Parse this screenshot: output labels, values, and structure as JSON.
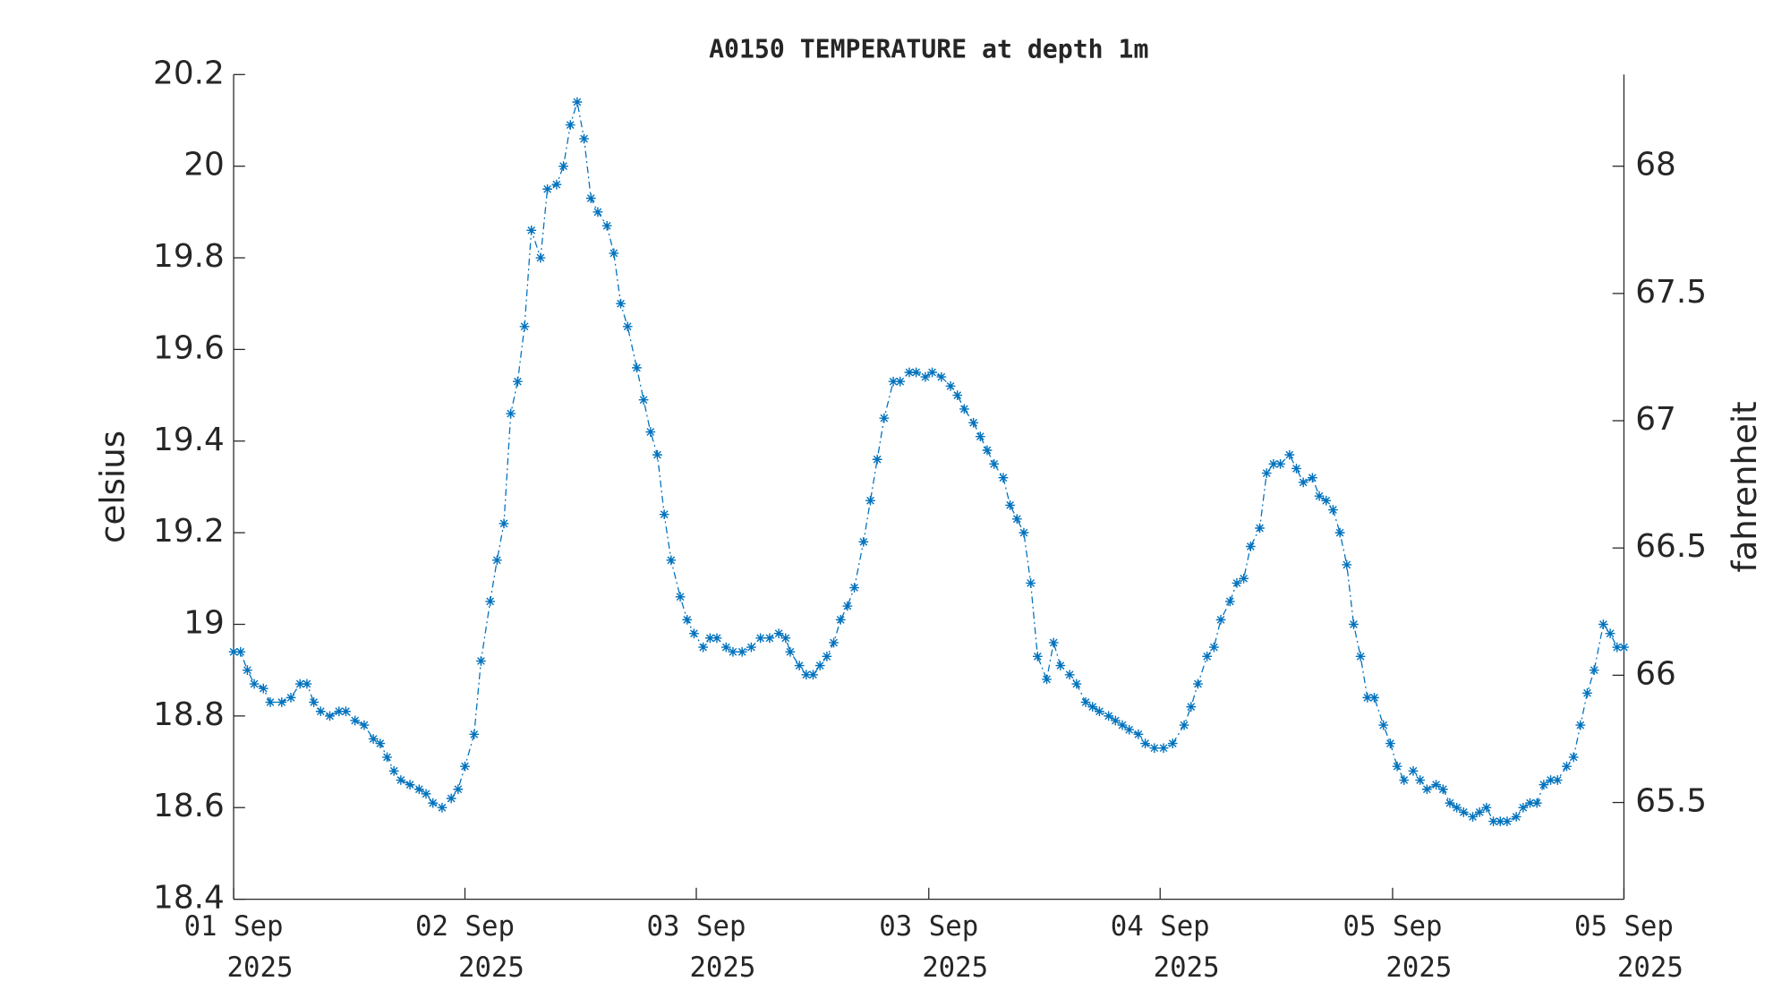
{
  "chart_data": {
    "type": "line",
    "title": "A0150 TEMPERATURE at depth 1m",
    "ylabel": "celsius",
    "y2label": "fahrenheit",
    "xlim": [
      0,
      1214
    ],
    "xticks": [
      {
        "value": 0,
        "label": [
          "01 Sep",
          "2025"
        ]
      },
      {
        "value": 202,
        "label": [
          "02 Sep",
          "2025"
        ]
      },
      {
        "value": 404,
        "label": [
          "03 Sep",
          "2025"
        ]
      },
      {
        "value": 607,
        "label": [
          "03 Sep",
          "2025"
        ]
      },
      {
        "value": 809,
        "label": [
          "04 Sep",
          "2025"
        ]
      },
      {
        "value": 1012,
        "label": [
          "05 Sep",
          "2025"
        ]
      },
      {
        "value": 1214,
        "label": [
          "05 Sep",
          "2025"
        ]
      }
    ],
    "ylim": [
      18.4,
      20.2
    ],
    "yticks": [
      18.4,
      18.6,
      18.8,
      19,
      19.2,
      19.4,
      19.6,
      19.8,
      20,
      20.2
    ],
    "y2lim": [
      65.12,
      68.36
    ],
    "y2ticks": [
      65.5,
      66,
      66.5,
      67,
      67.5,
      68
    ],
    "x": [
      0,
      6,
      12,
      18,
      26,
      32,
      42,
      50,
      58,
      64,
      70,
      76,
      84,
      92,
      98,
      106,
      114,
      122,
      128,
      134,
      140,
      146,
      154,
      162,
      168,
      174,
      182,
      190,
      196,
      202,
      210,
      216,
      224,
      230,
      236,
      242,
      248,
      254,
      260,
      268,
      274,
      282,
      288,
      294,
      300,
      306,
      312,
      318,
      326,
      332,
      338,
      344,
      352,
      358,
      364,
      370,
      376,
      382,
      390,
      396,
      402,
      410,
      416,
      422,
      430,
      436,
      444,
      452,
      460,
      468,
      476,
      482,
      486,
      494,
      500,
      506,
      512,
      518,
      524,
      530,
      536,
      542,
      550,
      556,
      562,
      568,
      576,
      582,
      590,
      596,
      604,
      610,
      618,
      626,
      632,
      638,
      646,
      652,
      658,
      664,
      672,
      678,
      684,
      690,
      696,
      702,
      710,
      716,
      722,
      730,
      736,
      744,
      750,
      756,
      764,
      770,
      776,
      782,
      790,
      796,
      804,
      812,
      820,
      830,
      836,
      842,
      850,
      856,
      862,
      870,
      876,
      882,
      888,
      896,
      902,
      908,
      914,
      922,
      928,
      934,
      942,
      948,
      954,
      960,
      966,
      972,
      978,
      984,
      990,
      996,
      1004,
      1010,
      1016,
      1022,
      1030,
      1036,
      1042,
      1050,
      1056,
      1062,
      1068,
      1074,
      1082,
      1088,
      1094,
      1100,
      1106,
      1112,
      1120,
      1126,
      1132,
      1138,
      1144,
      1150,
      1156,
      1164,
      1170,
      1176,
      1182,
      1188,
      1196,
      1202,
      1208,
      1214
    ],
    "series": [
      {
        "color": "#0072bd",
        "axis": "y",
        "values": [
          18.94,
          18.94,
          18.9,
          18.87,
          18.86,
          18.83,
          18.83,
          18.84,
          18.87,
          18.87,
          18.83,
          18.81,
          18.8,
          18.81,
          18.81,
          18.79,
          18.78,
          18.75,
          18.74,
          18.71,
          18.68,
          18.66,
          18.65,
          18.64,
          18.63,
          18.61,
          18.6,
          18.62,
          18.64,
          18.69,
          18.76,
          18.92,
          19.05,
          19.14,
          19.22,
          19.46,
          19.53,
          19.65,
          19.86,
          19.8,
          19.95,
          19.96,
          20.0,
          20.09,
          20.14,
          20.06,
          19.93,
          19.9,
          19.87,
          19.81,
          19.7,
          19.65,
          19.56,
          19.49,
          19.42,
          19.37,
          19.24,
          19.14,
          19.06,
          19.01,
          18.98,
          18.95,
          18.97,
          18.97,
          18.95,
          18.94,
          18.94,
          18.95,
          18.97,
          18.97,
          18.98,
          18.97,
          18.94,
          18.91,
          18.89,
          18.89,
          18.91,
          18.93,
          18.96,
          19.01,
          19.04,
          19.08,
          19.18,
          19.27,
          19.36,
          19.45,
          19.53,
          19.53,
          19.55,
          19.55,
          19.54,
          19.55,
          19.54,
          19.52,
          19.5,
          19.47,
          19.44,
          19.41,
          19.38,
          19.35,
          19.32,
          19.26,
          19.23,
          19.2,
          19.09,
          18.93,
          18.88,
          18.96,
          18.91,
          18.89,
          18.87,
          18.83,
          18.82,
          18.81,
          18.8,
          18.79,
          18.78,
          18.77,
          18.76,
          18.74,
          18.73,
          18.73,
          18.74,
          18.78,
          18.82,
          18.87,
          18.93,
          18.95,
          19.01,
          19.05,
          19.09,
          19.1,
          19.17,
          19.21,
          19.33,
          19.35,
          19.35,
          19.37,
          19.34,
          19.31,
          19.32,
          19.28,
          19.27,
          19.25,
          19.2,
          19.13,
          19.0,
          18.93,
          18.84,
          18.84,
          18.78,
          18.74,
          18.69,
          18.66,
          18.68,
          18.66,
          18.64,
          18.65,
          18.64,
          18.61,
          18.6,
          18.59,
          18.58,
          18.59,
          18.6,
          18.57,
          18.57,
          18.57,
          18.58,
          18.6,
          18.61,
          18.61,
          18.65,
          18.66,
          18.66,
          18.69,
          18.71,
          18.78,
          18.85,
          18.9,
          19.0,
          18.98,
          18.95,
          18.95
        ]
      }
    ]
  }
}
